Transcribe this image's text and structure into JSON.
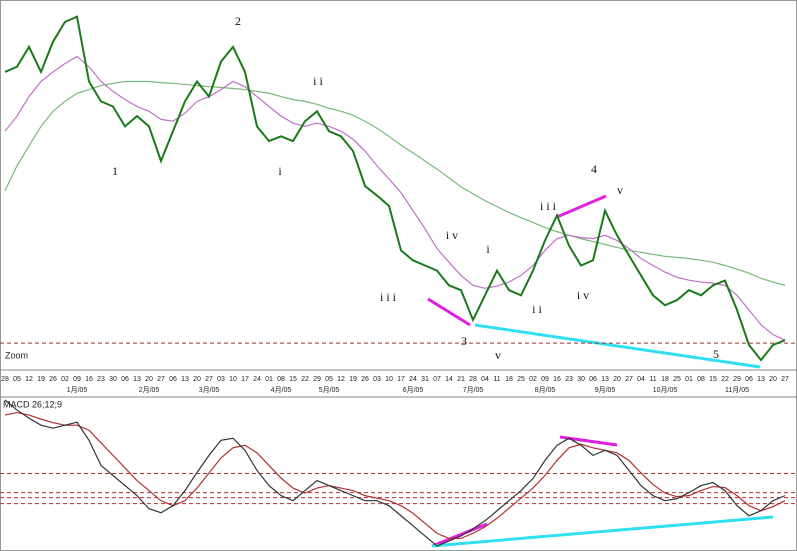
{
  "chart_data": [
    {
      "type": "line",
      "categories": [
        "28",
        "05",
        "12",
        "19",
        "26",
        "02",
        "09",
        "16",
        "23",
        "30",
        "06",
        "13",
        "20",
        "27",
        "06",
        "13",
        "20",
        "27",
        "03",
        "10",
        "17",
        "24",
        "01",
        "08",
        "15",
        "22",
        "29",
        "05",
        "12",
        "19",
        "26",
        "03",
        "10",
        "17",
        "24",
        "31",
        "07",
        "14",
        "21",
        "28",
        "04",
        "11",
        "18",
        "25",
        "02",
        "09",
        "16",
        "23",
        "30",
        "06",
        "13",
        "20",
        "27",
        "04",
        "11",
        "18",
        "25",
        "01",
        "08",
        "15",
        "22",
        "29",
        "06",
        "13",
        "20",
        "27"
      ],
      "month_ticks": [
        {
          "value": 6,
          "label": "1月/05"
        },
        {
          "value": 12,
          "label": "2月/05"
        },
        {
          "value": 17,
          "label": "3月/05"
        },
        {
          "value": 23,
          "label": "4月/05"
        },
        {
          "value": 27,
          "label": "5月/05"
        },
        {
          "value": 34,
          "label": "6月/05"
        },
        {
          "value": 39,
          "label": "7月/05"
        },
        {
          "value": 45,
          "label": "8月/05"
        },
        {
          "value": 50,
          "label": "9月/05"
        },
        {
          "value": 55,
          "label": "10月/05"
        },
        {
          "value": 61,
          "label": "11月/05"
        }
      ],
      "series": [
        {
          "color": "#1a7a1a",
          "values": [
            81,
            82.4,
            87.8,
            81,
            89.2,
            94.6,
            96,
            78.4,
            73,
            71.6,
            66.2,
            69,
            66.2,
            56.8,
            64.9,
            73,
            78.4,
            74.3,
            83.8,
            87.8,
            81,
            66.2,
            62.2,
            63.5,
            62.2,
            67.6,
            70.3,
            64.9,
            63.5,
            59.5,
            50,
            47.4,
            44.6,
            32.5,
            29.8,
            28.4,
            27,
            23,
            21.7,
            13.6,
            20.3,
            27,
            21.7,
            20.3,
            27,
            35.2,
            42,
            33.8,
            28.4,
            29.8,
            43.3,
            36.6,
            31.1,
            25.7,
            20.3,
            17.6,
            19,
            21.7,
            20.3,
            23,
            24.3,
            16.3,
            6.8,
            2.7,
            6.8,
            8.1
          ]
        },
        {
          "color": "#c070c8",
          "values": [
            64.9,
            69,
            74.3,
            78.4,
            81,
            83.3,
            85.2,
            82.4,
            78.4,
            75.7,
            73.5,
            71.6,
            70.3,
            68.1,
            67.6,
            69.8,
            73,
            74.3,
            76.2,
            78.4,
            77,
            74.3,
            71.6,
            69,
            67.1,
            66.2,
            67.1,
            66.2,
            64.9,
            62.7,
            59.5,
            55.5,
            51.9,
            48.2,
            43.3,
            38.4,
            33,
            29.3,
            25.7,
            23,
            22.2,
            22.8,
            23.9,
            25.7,
            28.4,
            32.5,
            35.7,
            36.6,
            36,
            35.7,
            36.6,
            35.2,
            33,
            30.3,
            28.4,
            26.6,
            25.2,
            24.4,
            23.9,
            23.6,
            23,
            20.3,
            16.3,
            12.3,
            9.6,
            8.1
          ]
        },
        {
          "color": "#7ab87a",
          "values": [
            48.7,
            55.5,
            60.9,
            66.2,
            70.3,
            73,
            75.2,
            76.2,
            77.3,
            77.9,
            78.4,
            78.4,
            78.4,
            78.1,
            77.9,
            77.6,
            77.3,
            77,
            76.8,
            76.5,
            76.2,
            75.7,
            75.2,
            74.3,
            73.5,
            73,
            72.2,
            71.1,
            70.3,
            69.2,
            67.6,
            65.7,
            63.5,
            61.1,
            59,
            56.8,
            54.6,
            52.2,
            49.8,
            47.9,
            46,
            44.4,
            42.8,
            41.4,
            40.1,
            38.7,
            37.6,
            36.6,
            35.7,
            34.9,
            34.1,
            33.3,
            32.5,
            32,
            31.4,
            30.9,
            30.6,
            30.3,
            29.8,
            29.3,
            28.4,
            27.4,
            26.3,
            24.9,
            23.9,
            23
          ]
        }
      ],
      "ylim": [
        0,
        100
      ],
      "reference_lines": [
        7.3
      ],
      "zoom_label": "Zoom",
      "annotations": [
        "1",
        "2",
        "i i",
        "i",
        "3",
        "i i i",
        "i v",
        "v",
        "i",
        "i i",
        "i i i",
        "4",
        "v",
        "i v",
        "5"
      ]
    },
    {
      "type": "line",
      "title": "MACD 26;12;9",
      "series": [
        {
          "color": "#333333",
          "values": [
            1.8,
            1.6,
            1.44,
            1.3,
            1.24,
            1.3,
            1.36,
            1,
            0.5,
            0.3,
            0.1,
            -0.1,
            -0.36,
            -0.44,
            -0.3,
            0,
            0.36,
            0.7,
            1,
            1.04,
            0.8,
            0.4,
            0.1,
            -0.1,
            -0.2,
            0,
            0.2,
            0.1,
            0,
            -0.1,
            -0.2,
            -0.2,
            -0.3,
            -0.5,
            -0.7,
            -0.9,
            -1.1,
            -1,
            -0.9,
            -0.76,
            -0.6,
            -0.4,
            -0.2,
            0,
            0.24,
            0.6,
            0.9,
            1.04,
            0.9,
            0.7,
            0.8,
            0.7,
            0.4,
            0.1,
            -0.1,
            -0.2,
            -0.16,
            -0.04,
            0.1,
            0.16,
            0,
            -0.3,
            -0.5,
            -0.4,
            -0.2,
            -0.1
          ]
        },
        {
          "color": "#b03030",
          "values": [
            1.5,
            1.55,
            1.5,
            1.42,
            1.35,
            1.3,
            1.3,
            1.2,
            0.95,
            0.7,
            0.45,
            0.2,
            0,
            -0.2,
            -0.3,
            -0.2,
            0.05,
            0.35,
            0.65,
            0.85,
            0.9,
            0.75,
            0.5,
            0.25,
            0.05,
            -0.05,
            0.05,
            0.1,
            0.05,
            0,
            -0.1,
            -0.15,
            -0.2,
            -0.3,
            -0.45,
            -0.65,
            -0.85,
            -0.95,
            -0.95,
            -0.85,
            -0.72,
            -0.55,
            -0.35,
            -0.15,
            0.05,
            0.3,
            0.6,
            0.85,
            0.92,
            0.85,
            0.8,
            0.75,
            0.6,
            0.35,
            0.12,
            -0.05,
            -0.12,
            -0.1,
            0,
            0.08,
            0.06,
            -0.1,
            -0.3,
            -0.4,
            -0.32,
            -0.2
          ]
        }
      ],
      "ylim": [
        -1.2,
        1.8
      ],
      "levels": [
        0.34,
        -0.04,
        -0.14,
        -0.26
      ]
    }
  ]
}
